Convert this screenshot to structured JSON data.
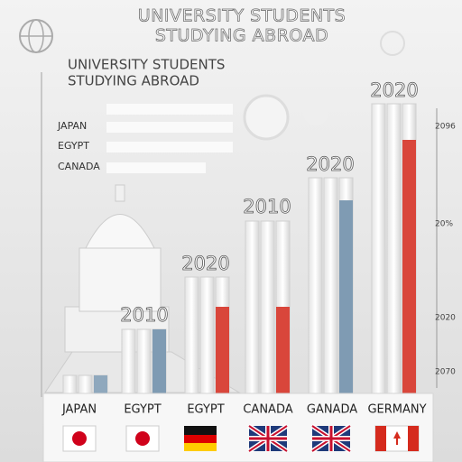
{
  "header": {
    "title_lines": [
      "UNIVERSITY STUDENTS",
      "STUDYING ABROAD"
    ]
  },
  "panel": {
    "title_lines": [
      "UNIVERSITY STUDENTS",
      "STUDYING ABROAD"
    ],
    "legend": [
      "JAPAN",
      "EGYPT",
      "CANADA"
    ]
  },
  "bar_labels": [
    "2010",
    "2020",
    "2010",
    "2020",
    "2020"
  ],
  "side_labels": [
    "2096",
    "20%",
    "2020",
    "2070"
  ],
  "bottom_labels": [
    "JAPAN",
    "EGYPT",
    "EGYPT",
    "CANADA",
    "GANADA",
    "GERMANY"
  ]
}
